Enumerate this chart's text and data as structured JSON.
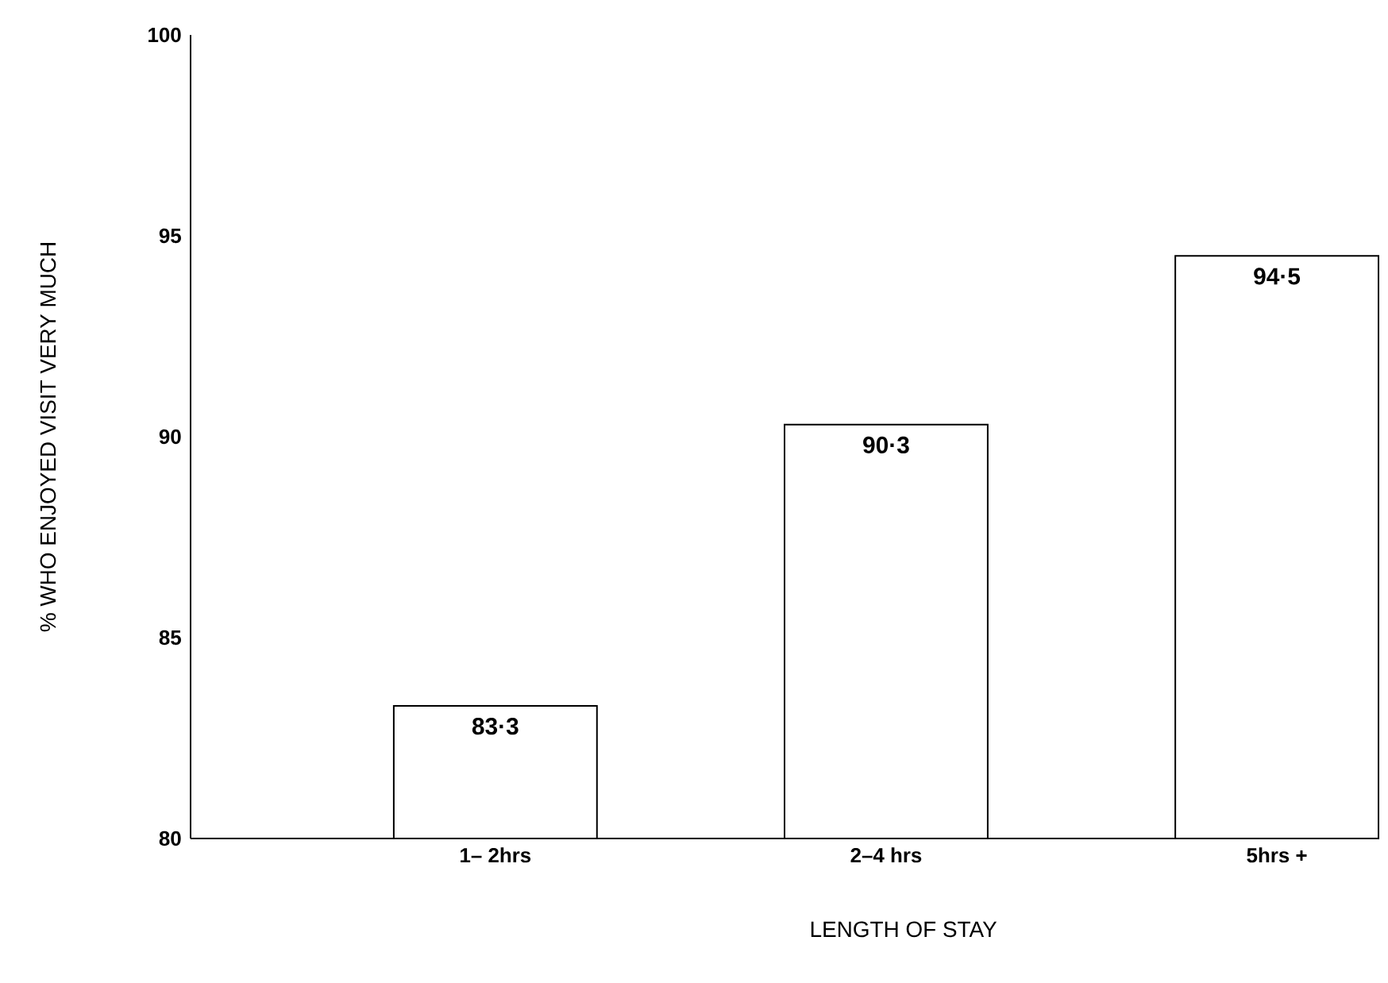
{
  "chart_data": {
    "type": "bar",
    "xlabel": "LENGTH OF STAY",
    "ylabel": "% WHO ENJOYED VISIT VERY MUCH",
    "categories": [
      "1– 2hrs",
      "2–4 hrs",
      "5hrs +"
    ],
    "values": [
      83.3,
      90.3,
      94.5
    ],
    "value_labels": [
      "83·3",
      "90·3",
      "94·5"
    ],
    "color": "#ffffff",
    "ylim": [
      80,
      100
    ],
    "yticks": [
      80,
      85,
      90,
      95,
      100
    ]
  }
}
